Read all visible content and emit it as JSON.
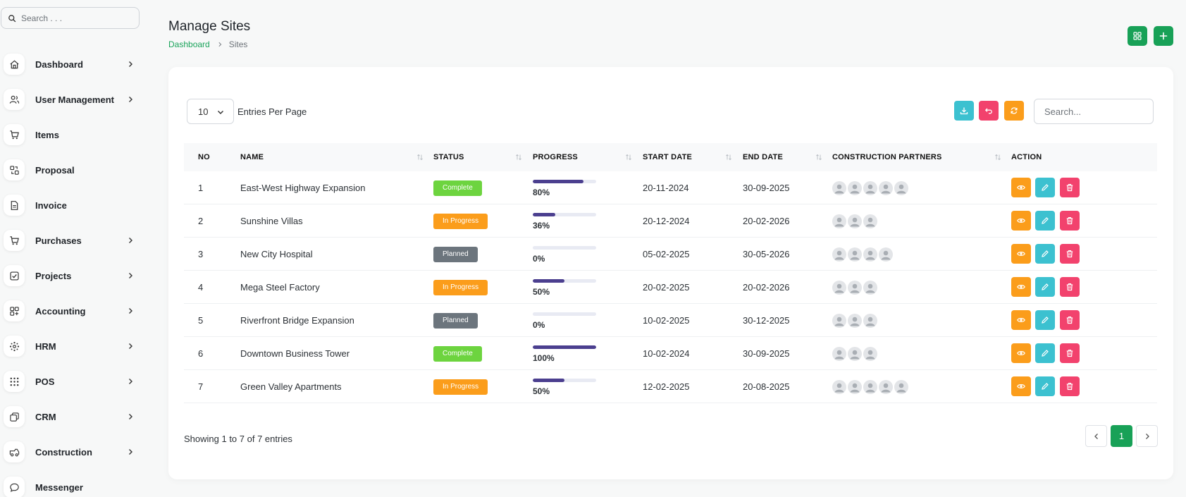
{
  "sidebar": {
    "search_placeholder": "Search . . .",
    "items": [
      {
        "label": "Dashboard",
        "icon": "home-icon",
        "has_children": true
      },
      {
        "label": "User Management",
        "icon": "users-icon",
        "has_children": true
      },
      {
        "label": "Items",
        "icon": "cart-icon",
        "has_children": false
      },
      {
        "label": "Proposal",
        "icon": "proposal-icon",
        "has_children": false
      },
      {
        "label": "Invoice",
        "icon": "invoice-icon",
        "has_children": false
      },
      {
        "label": "Purchases",
        "icon": "cart-icon",
        "has_children": true
      },
      {
        "label": "Projects",
        "icon": "checkbox-icon",
        "has_children": true
      },
      {
        "label": "Accounting",
        "icon": "grid-plus-icon",
        "has_children": true
      },
      {
        "label": "HRM",
        "icon": "hrm-icon",
        "has_children": true
      },
      {
        "label": "POS",
        "icon": "dots-grid-icon",
        "has_children": true
      },
      {
        "label": "CRM",
        "icon": "layers-icon",
        "has_children": true
      },
      {
        "label": "Construction",
        "icon": "truck-icon",
        "has_children": true
      },
      {
        "label": "Messenger",
        "icon": "chat-icon",
        "has_children": false
      }
    ]
  },
  "header": {
    "title": "Manage Sites",
    "breadcrumb": {
      "root": "Dashboard",
      "current": "Sites"
    }
  },
  "toolbar": {
    "entries_value": "10",
    "entries_label": "Entries Per Page",
    "search_placeholder": "Search..."
  },
  "table": {
    "columns": [
      "NO",
      "NAME",
      "STATUS",
      "PROGRESS",
      "START DATE",
      "END DATE",
      "CONSTRUCTION PARTNERS",
      "ACTION"
    ],
    "rows": [
      {
        "no": "1",
        "name": "East-West Highway Expansion",
        "status": "Complete",
        "progress": 80,
        "progress_text": "80%",
        "start": "20-11-2024",
        "end": "30-09-2025",
        "partners": 5
      },
      {
        "no": "2",
        "name": "Sunshine Villas",
        "status": "In Progress",
        "progress": 36,
        "progress_text": "36%",
        "start": "20-12-2024",
        "end": "20-02-2026",
        "partners": 3
      },
      {
        "no": "3",
        "name": "New City Hospital",
        "status": "Planned",
        "progress": 0,
        "progress_text": "0%",
        "start": "05-02-2025",
        "end": "30-05-2026",
        "partners": 4
      },
      {
        "no": "4",
        "name": "Mega Steel Factory",
        "status": "In Progress",
        "progress": 50,
        "progress_text": "50%",
        "start": "20-02-2025",
        "end": "20-02-2026",
        "partners": 3
      },
      {
        "no": "5",
        "name": "Riverfront Bridge Expansion",
        "status": "Planned",
        "progress": 0,
        "progress_text": "0%",
        "start": "10-02-2025",
        "end": "30-12-2025",
        "partners": 3
      },
      {
        "no": "6",
        "name": "Downtown Business Tower",
        "status": "Complete",
        "progress": 100,
        "progress_text": "100%",
        "start": "10-02-2024",
        "end": "30-09-2025",
        "partners": 3
      },
      {
        "no": "7",
        "name": "Green Valley Apartments",
        "status": "In Progress",
        "progress": 50,
        "progress_text": "50%",
        "start": "12-02-2025",
        "end": "20-08-2025",
        "partners": 5
      }
    ]
  },
  "footer": {
    "showing": "Showing 1 to 7 of 7 entries",
    "current_page": "1"
  },
  "colors": {
    "brand_green": "#18a157",
    "complete": "#6dd43f",
    "in_progress": "#fb9d1b",
    "planned": "#6c757d",
    "view": "#fb9d1b",
    "edit": "#3cc1d0",
    "delete": "#f2426d",
    "progress": "#4b3f8f"
  }
}
